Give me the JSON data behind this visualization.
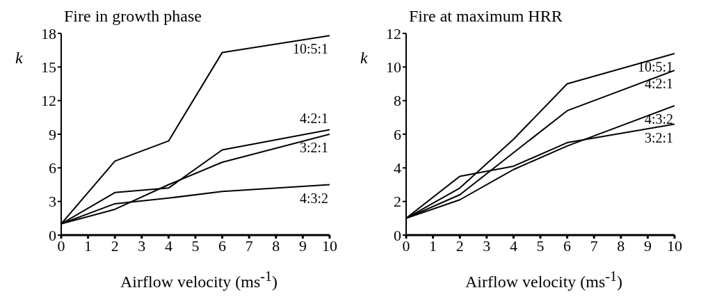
{
  "chart_data": [
    {
      "type": "line",
      "title": "Fire in growth phase",
      "xlabel": "Airflow velocity (ms$^{-1}$)",
      "ylabel": "k",
      "x": [
        0,
        2,
        4,
        6,
        10
      ],
      "xlim": [
        0,
        10
      ],
      "xticks": [
        0,
        1,
        2,
        3,
        4,
        5,
        6,
        7,
        8,
        9,
        10
      ],
      "ylim": [
        0,
        18
      ],
      "yticks": [
        0,
        3,
        6,
        9,
        12,
        15,
        18
      ],
      "grid": false,
      "legend": false,
      "marker": "none",
      "series": [
        {
          "name": "10:5:1",
          "color": "#000000",
          "values": [
            1,
            6.6,
            8.4,
            16.3,
            17.8
          ]
        },
        {
          "name": "4:2:1",
          "color": "#000000",
          "values": [
            1,
            3.8,
            4.2,
            7.6,
            9.4
          ]
        },
        {
          "name": "3:2:1",
          "color": "#000000",
          "values": [
            1,
            2.3,
            4.5,
            6.5,
            9.0
          ]
        },
        {
          "name": "4:3:2",
          "color": "#000000",
          "values": [
            1,
            2.8,
            3.3,
            3.9,
            4.5
          ]
        }
      ]
    },
    {
      "type": "line",
      "title": "Fire at maximum HRR",
      "xlabel": "Airflow velocity (ms$^{-1}$)",
      "ylabel": "k",
      "x": [
        0,
        2,
        4,
        6,
        10
      ],
      "xlim": [
        0,
        10
      ],
      "xticks": [
        0,
        1,
        2,
        3,
        4,
        5,
        6,
        7,
        8,
        9,
        10
      ],
      "ylim": [
        0,
        12
      ],
      "yticks": [
        0,
        2,
        4,
        6,
        8,
        10,
        12
      ],
      "grid": false,
      "legend": false,
      "marker": "none",
      "series": [
        {
          "name": "10:5:1",
          "color": "#000000",
          "values": [
            1,
            2.8,
            5.7,
            9.0,
            10.8
          ]
        },
        {
          "name": "4:2:1",
          "color": "#000000",
          "values": [
            1,
            2.4,
            4.9,
            7.4,
            9.8
          ]
        },
        {
          "name": "4:3:2",
          "color": "#000000",
          "values": [
            1,
            2.1,
            3.9,
            5.3,
            7.7
          ]
        },
        {
          "name": "3:2:1",
          "color": "#000000",
          "values": [
            1,
            3.5,
            4.1,
            5.5,
            6.6
          ]
        }
      ]
    }
  ]
}
